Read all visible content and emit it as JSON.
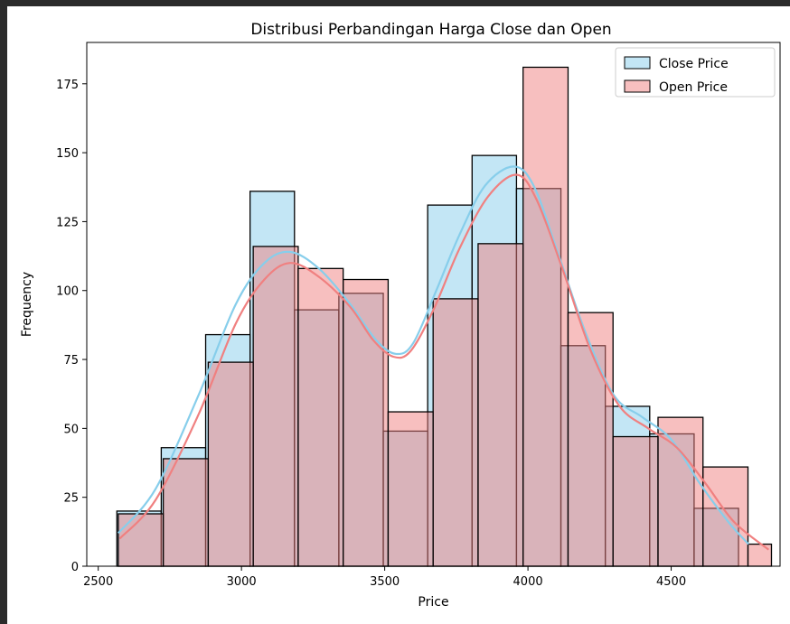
{
  "chart_data": {
    "type": "histogram",
    "title": "Distribusi Perbandingan Harga Close dan Open",
    "xlabel": "Price",
    "ylabel": "Frequency",
    "xlim": [
      2460,
      4880
    ],
    "ylim": [
      0,
      190
    ],
    "xticks": [
      2500,
      3000,
      3500,
      4000,
      4500
    ],
    "yticks": [
      0,
      25,
      50,
      75,
      100,
      125,
      150,
      175
    ],
    "grid": false,
    "legend_position": "top-right",
    "colors": {
      "close_fill": "#87ceeb",
      "close_line": "#87ceeb",
      "open_fill": "#f08080",
      "open_line": "#f08080",
      "edge": "#000000"
    },
    "series": [
      {
        "name": "Close Price",
        "key": "close",
        "bins": [
          {
            "x0": 2565,
            "x1": 2720,
            "count": 20
          },
          {
            "x0": 2720,
            "x1": 2875,
            "count": 43
          },
          {
            "x0": 2875,
            "x1": 3030,
            "count": 84
          },
          {
            "x0": 3030,
            "x1": 3185,
            "count": 136
          },
          {
            "x0": 3185,
            "x1": 3340,
            "count": 93
          },
          {
            "x0": 3340,
            "x1": 3495,
            "count": 99
          },
          {
            "x0": 3495,
            "x1": 3650,
            "count": 49
          },
          {
            "x0": 3650,
            "x1": 3805,
            "count": 131
          },
          {
            "x0": 3805,
            "x1": 3960,
            "count": 149
          },
          {
            "x0": 3960,
            "x1": 4115,
            "count": 137
          },
          {
            "x0": 4115,
            "x1": 4270,
            "count": 80
          },
          {
            "x0": 4270,
            "x1": 4425,
            "count": 58
          },
          {
            "x0": 4425,
            "x1": 4580,
            "count": 48
          },
          {
            "x0": 4580,
            "x1": 4735,
            "count": 21
          }
        ],
        "kde": [
          [
            2570,
            12
          ],
          [
            2700,
            28
          ],
          [
            2850,
            62
          ],
          [
            2980,
            95
          ],
          [
            3080,
            110
          ],
          [
            3170,
            114
          ],
          [
            3270,
            108
          ],
          [
            3380,
            95
          ],
          [
            3470,
            82
          ],
          [
            3540,
            77
          ],
          [
            3600,
            81
          ],
          [
            3680,
            100
          ],
          [
            3760,
            120
          ],
          [
            3850,
            138
          ],
          [
            3950,
            145
          ],
          [
            4020,
            138
          ],
          [
            4100,
            115
          ],
          [
            4200,
            85
          ],
          [
            4300,
            62
          ],
          [
            4400,
            54
          ],
          [
            4500,
            46
          ],
          [
            4600,
            30
          ],
          [
            4700,
            16
          ],
          [
            4770,
            8
          ]
        ]
      },
      {
        "name": "Open Price",
        "key": "open",
        "bins": [
          {
            "x0": 2570,
            "x1": 2727,
            "count": 19
          },
          {
            "x0": 2727,
            "x1": 2884,
            "count": 39
          },
          {
            "x0": 2884,
            "x1": 3041,
            "count": 74
          },
          {
            "x0": 3041,
            "x1": 3198,
            "count": 116
          },
          {
            "x0": 3198,
            "x1": 3355,
            "count": 108
          },
          {
            "x0": 3355,
            "x1": 3512,
            "count": 104
          },
          {
            "x0": 3512,
            "x1": 3669,
            "count": 56
          },
          {
            "x0": 3669,
            "x1": 3826,
            "count": 97
          },
          {
            "x0": 3826,
            "x1": 3983,
            "count": 117
          },
          {
            "x0": 3983,
            "x1": 4140,
            "count": 181
          },
          {
            "x0": 4140,
            "x1": 4297,
            "count": 92
          },
          {
            "x0": 4297,
            "x1": 4454,
            "count": 47
          },
          {
            "x0": 4454,
            "x1": 4611,
            "count": 54
          },
          {
            "x0": 4611,
            "x1": 4768,
            "count": 36
          },
          {
            "x0": 4768,
            "x1": 4850,
            "count": 8
          }
        ],
        "kde": [
          [
            2575,
            10
          ],
          [
            2700,
            24
          ],
          [
            2850,
            55
          ],
          [
            2980,
            88
          ],
          [
            3080,
            104
          ],
          [
            3170,
            110
          ],
          [
            3270,
            105
          ],
          [
            3380,
            94
          ],
          [
            3460,
            82
          ],
          [
            3530,
            76
          ],
          [
            3590,
            78
          ],
          [
            3670,
            93
          ],
          [
            3760,
            115
          ],
          [
            3860,
            134
          ],
          [
            3960,
            142
          ],
          [
            4030,
            133
          ],
          [
            4120,
            108
          ],
          [
            4220,
            78
          ],
          [
            4320,
            58
          ],
          [
            4420,
            50
          ],
          [
            4520,
            43
          ],
          [
            4620,
            30
          ],
          [
            4720,
            16
          ],
          [
            4840,
            6
          ]
        ]
      }
    ]
  }
}
